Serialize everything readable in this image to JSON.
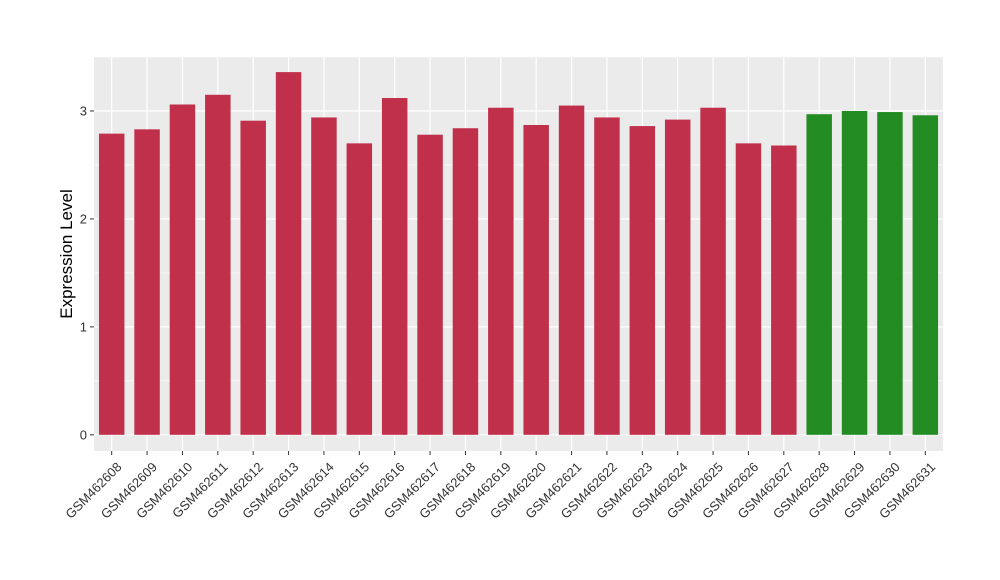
{
  "chart_data": {
    "type": "bar",
    "title": "",
    "xlabel": "",
    "ylabel": "Expression Level",
    "ylim": [
      -0.15,
      3.5
    ],
    "yticks": [
      0,
      1,
      2,
      3
    ],
    "grid": true,
    "legend": "none",
    "categories": [
      "GSM462608",
      "GSM462609",
      "GSM462610",
      "GSM462611",
      "GSM462612",
      "GSM462613",
      "GSM462614",
      "GSM462615",
      "GSM462616",
      "GSM462617",
      "GSM462618",
      "GSM462619",
      "GSM462620",
      "GSM462621",
      "GSM462622",
      "GSM462623",
      "GSM462624",
      "GSM462625",
      "GSM462626",
      "GSM462627",
      "GSM462628",
      "GSM462629",
      "GSM462630",
      "GSM462631"
    ],
    "values": [
      2.79,
      2.83,
      3.06,
      3.15,
      2.91,
      3.36,
      2.94,
      2.7,
      3.12,
      2.78,
      2.84,
      3.03,
      2.87,
      3.05,
      2.94,
      2.86,
      2.92,
      3.03,
      2.7,
      2.68,
      2.97,
      3.0,
      2.99,
      2.96
    ],
    "bar_colors": [
      "#C0304A",
      "#C0304A",
      "#C0304A",
      "#C0304A",
      "#C0304A",
      "#C0304A",
      "#C0304A",
      "#C0304A",
      "#C0304A",
      "#C0304A",
      "#C0304A",
      "#C0304A",
      "#C0304A",
      "#C0304A",
      "#C0304A",
      "#C0304A",
      "#C0304A",
      "#C0304A",
      "#C0304A",
      "#C0304A",
      "#228B22",
      "#228B22",
      "#228B22",
      "#228B22"
    ],
    "panel_background": "#EBEBEB",
    "grid_color": "#FFFFFF"
  }
}
